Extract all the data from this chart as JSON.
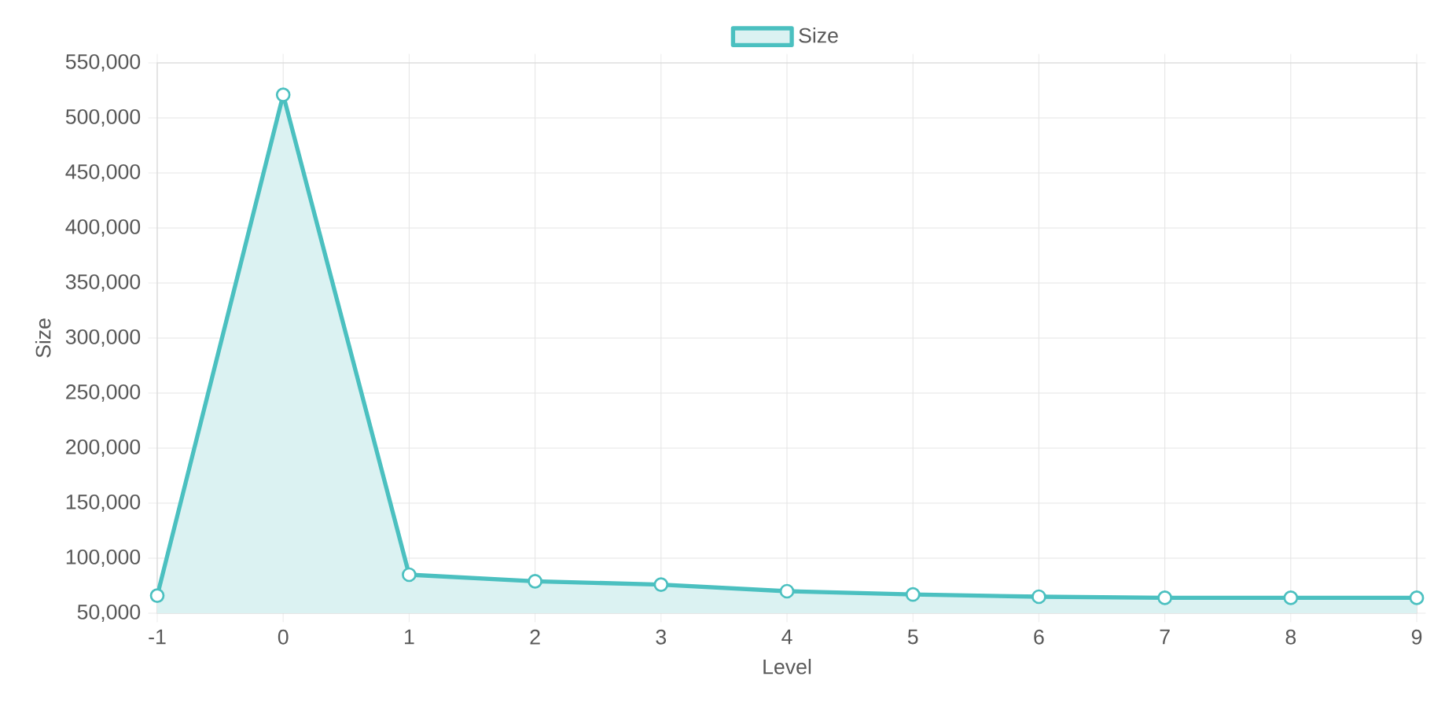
{
  "chart_data": {
    "type": "area",
    "xlabel": "Level",
    "ylabel": "Size",
    "categories": [
      "-1",
      "0",
      "1",
      "2",
      "3",
      "4",
      "5",
      "6",
      "7",
      "8",
      "9"
    ],
    "series": [
      {
        "name": "Size",
        "color": "#4bc0c0",
        "values": [
          66000,
          521000,
          85000,
          79000,
          76000,
          70000,
          67000,
          65000,
          64000,
          64000,
          64000
        ]
      }
    ],
    "ylim": [
      50000,
      550000
    ],
    "yticks": [
      {
        "value": 50000,
        "label": "50,000"
      },
      {
        "value": 100000,
        "label": "100,000"
      },
      {
        "value": 150000,
        "label": "150,000"
      },
      {
        "value": 200000,
        "label": "200,000"
      },
      {
        "value": 250000,
        "label": "250,000"
      },
      {
        "value": 300000,
        "label": "300,000"
      },
      {
        "value": 350000,
        "label": "350,000"
      },
      {
        "value": 400000,
        "label": "400,000"
      },
      {
        "value": 450000,
        "label": "450,000"
      },
      {
        "value": 500000,
        "label": "500,000"
      },
      {
        "value": 550000,
        "label": "550,000"
      }
    ],
    "grid": true,
    "legend": "top",
    "marker": "circle",
    "line_style": "solid"
  }
}
